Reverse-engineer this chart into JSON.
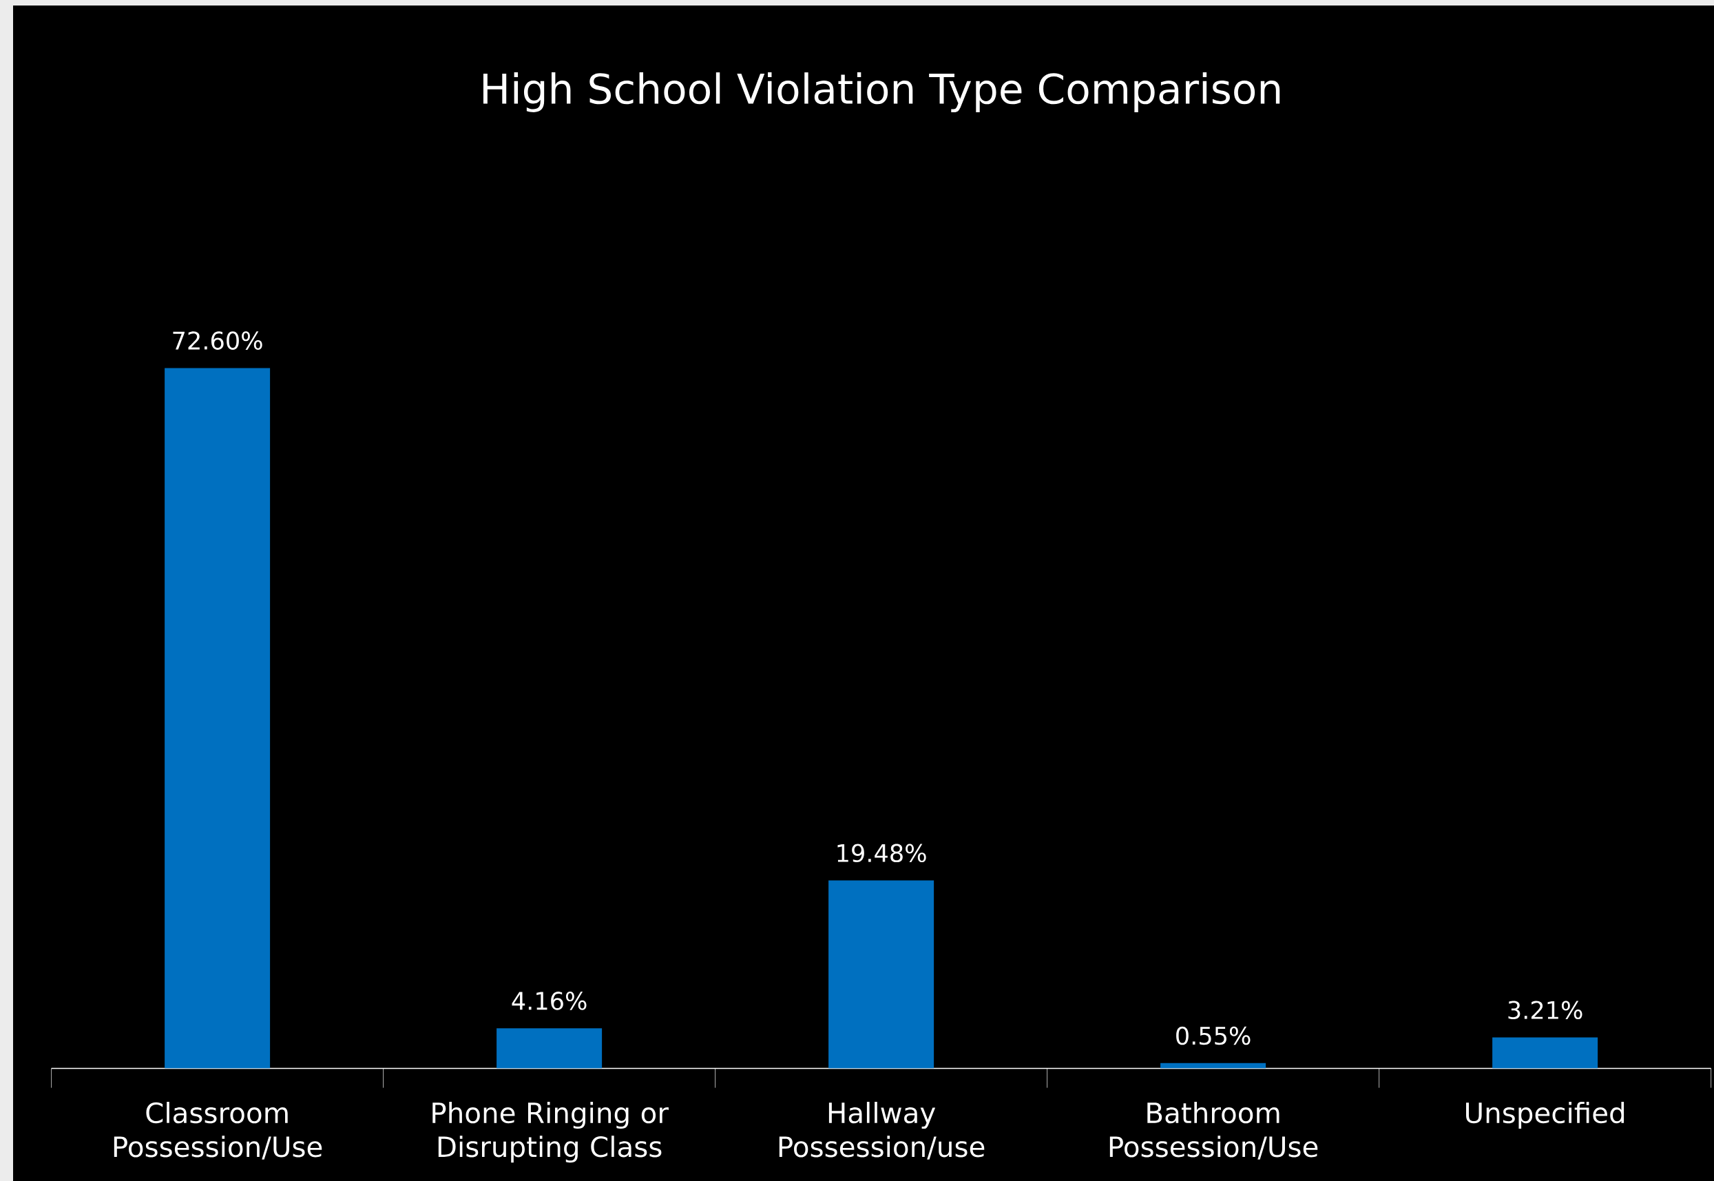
{
  "chart_data": {
    "type": "bar",
    "title": "High School Violation Type Comparison",
    "categories": [
      "Classroom Possession/Use",
      "Phone Ringing or Disrupting Class",
      "Hallway Possession/use",
      "Bathroom Possession/Use",
      "Unspecified"
    ],
    "values": [
      72.6,
      4.16,
      19.48,
      0.55,
      3.21
    ],
    "value_labels": [
      "72.60%",
      "4.16%",
      "19.48%",
      "0.55%",
      "3.21%"
    ],
    "color": "#0070c0"
  }
}
